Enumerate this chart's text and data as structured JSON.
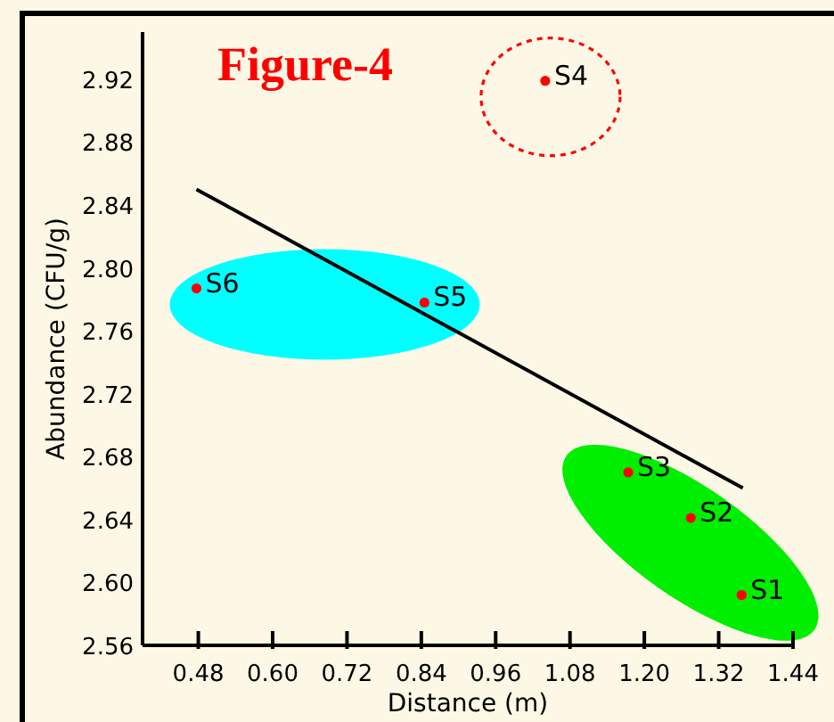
{
  "chart_data": {
    "type": "scatter",
    "title": "Figure-4",
    "xlabel": "Distance (m)",
    "ylabel": "Abundance (CFU/g)",
    "xlim": [
      0.39,
      1.44
    ],
    "xticks": [
      {
        "value": 0.48,
        "label": "0.48"
      },
      {
        "value": 0.6,
        "label": "0.60"
      },
      {
        "value": 0.72,
        "label": "0.72"
      },
      {
        "value": 0.84,
        "label": "0.84"
      },
      {
        "value": 0.96,
        "label": "0.96"
      },
      {
        "value": 1.08,
        "label": "1.08"
      },
      {
        "value": 1.2,
        "label": "1.20"
      },
      {
        "value": 1.32,
        "label": "1.32"
      },
      {
        "value": 1.44,
        "label": "1.44"
      }
    ],
    "ylim": [
      2.56,
      2.95
    ],
    "yticks": [
      2.56,
      {
        "value": 2.6,
        "label": "2.60"
      },
      2.64,
      2.68,
      2.72,
      2.76,
      {
        "value": 2.8,
        "label": "2.80"
      },
      2.84,
      2.88,
      2.92
    ],
    "grid": false,
    "series": [
      {
        "marker": "circle",
        "color": "#ff0000",
        "x": [
          1.357,
          1.275,
          1.174,
          1.04,
          0.845,
          0.477
        ],
        "values": [
          2.592,
          2.641,
          2.67,
          2.919,
          2.778,
          2.787
        ]
      },
      {
        "type": "line",
        "color": "#000000",
        "x": [
          0.477,
          1.359
        ],
        "values": [
          2.85,
          2.66
        ]
      }
    ],
    "annotations": [
      {
        "text": "S1",
        "x": 1.357,
        "y": 2.592
      },
      {
        "text": "S2",
        "x": 1.275,
        "y": 2.641
      },
      {
        "text": "S3",
        "x": 1.174,
        "y": 2.67
      },
      {
        "text": "S4",
        "x": 1.04,
        "y": 2.919
      },
      {
        "text": "S5",
        "x": 0.845,
        "y": 2.778
      },
      {
        "text": "S6",
        "x": 0.477,
        "y": 2.787
      }
    ]
  }
}
